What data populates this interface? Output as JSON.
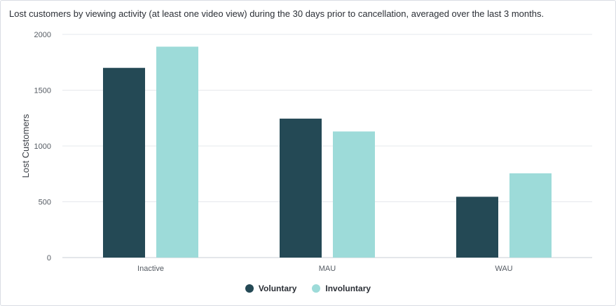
{
  "chart_data": {
    "type": "bar",
    "title": "Lost customers by viewing activity (at least one video view) during the 30 days prior to cancellation, averaged over the last 3 months.",
    "xlabel": "",
    "ylabel": "Lost Customers",
    "ylim": [
      0,
      2000
    ],
    "yticks": [
      0,
      500,
      1000,
      1500,
      2000
    ],
    "categories": [
      "Inactive",
      "MAU",
      "WAU"
    ],
    "series": [
      {
        "name": "Voluntary",
        "color": "#244955",
        "values": [
          1700,
          1245,
          545
        ]
      },
      {
        "name": "Involuntary",
        "color": "#9ddbd9",
        "values": [
          1890,
          1130,
          755
        ]
      }
    ],
    "legend_position": "bottom-center",
    "grid": true
  }
}
